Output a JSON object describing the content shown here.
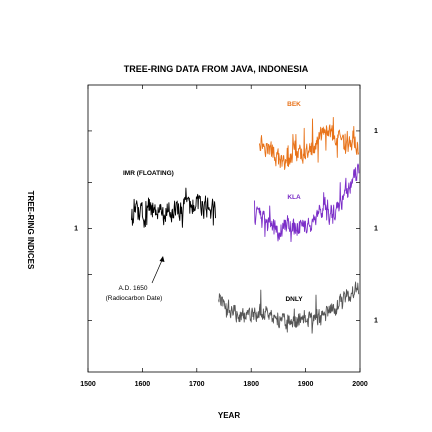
{
  "chart_data": {
    "type": "line",
    "title": "TREE-RING DATA FROM JAVA, INDONESIA",
    "xlabel": "YEAR",
    "ylabel": "TREE-RING INDICES",
    "xlim": [
      1500,
      2000
    ],
    "xticks": [
      "1500",
      "1600",
      "1700",
      "1800",
      "1900",
      "2000"
    ],
    "yticks_left": [
      "1"
    ],
    "yticks_right": [
      "1",
      "1",
      "1"
    ],
    "grid": false,
    "series": [
      {
        "name": "BEK",
        "color": "#e8731a",
        "x_range": [
          1815,
          1998
        ],
        "offset": 0.25,
        "amplitude": 0.14,
        "trend": [
          [
            1815,
            0.1
          ],
          [
            1840,
            0.02
          ],
          [
            1860,
            -0.05
          ],
          [
            1880,
            0.04
          ],
          [
            1900,
            0.0
          ],
          [
            1920,
            0.08
          ],
          [
            1940,
            0.15
          ],
          [
            1960,
            0.1
          ],
          [
            1975,
            0.04
          ],
          [
            1990,
            0.12
          ],
          [
            1998,
            0.02
          ]
        ]
      },
      {
        "name": "KLA",
        "color": "#7b2ec8",
        "x_range": [
          1806,
          1998
        ],
        "offset": 0.45,
        "amplitude": 0.14,
        "trend": [
          [
            1806,
            0.0
          ],
          [
            1830,
            -0.06
          ],
          [
            1850,
            -0.1
          ],
          [
            1870,
            -0.04
          ],
          [
            1890,
            -0.08
          ],
          [
            1910,
            -0.05
          ],
          [
            1930,
            0.02
          ],
          [
            1950,
            -0.02
          ],
          [
            1965,
            0.08
          ],
          [
            1980,
            0.15
          ],
          [
            1998,
            0.25
          ]
        ]
      },
      {
        "name": "IMR (FLOATING)",
        "color": "#000000",
        "x_range": [
          1580,
          1735
        ],
        "offset": 0.45,
        "amplitude": 0.16,
        "trend": [
          [
            1580,
            -0.02
          ],
          [
            1610,
            0.04
          ],
          [
            1640,
            0.0
          ],
          [
            1670,
            0.02
          ],
          [
            1700,
            0.05
          ],
          [
            1735,
            0.03
          ]
        ]
      },
      {
        "name": "DNLY",
        "color": "#555555",
        "x_range": [
          1740,
          1998
        ],
        "offset": 0.78,
        "amplitude": 0.12,
        "trend": [
          [
            1740,
            0.06
          ],
          [
            1760,
            0.0
          ],
          [
            1790,
            -0.05
          ],
          [
            1820,
            -0.02
          ],
          [
            1850,
            -0.06
          ],
          [
            1880,
            -0.08
          ],
          [
            1900,
            -0.05
          ],
          [
            1930,
            -0.04
          ],
          [
            1950,
            0.0
          ],
          [
            1970,
            0.05
          ],
          [
            1985,
            0.1
          ],
          [
            1998,
            0.12
          ]
        ]
      }
    ],
    "annotation": {
      "year": 1650,
      "lines": [
        "A.D. 1650",
        "(Radiocarbon Date)"
      ]
    }
  }
}
